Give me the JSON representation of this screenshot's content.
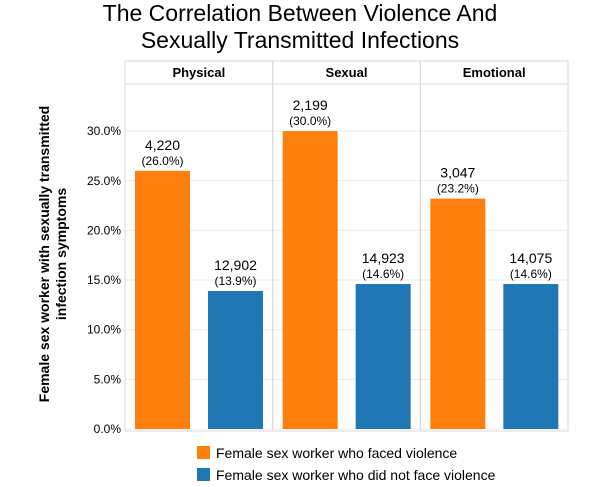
{
  "title_lines": [
    "The Correlation Between Violence And",
    "Sexually Transmitted Infections"
  ],
  "chart_data": {
    "type": "bar",
    "title": "The Correlation Between Violence And Sexually Transmitted Infections",
    "ylabel_lines": [
      "Female sex worker with sexually transmitted",
      "infection symptoms"
    ],
    "ylim": [
      0,
      35
    ],
    "yticks": [
      0,
      5,
      10,
      15,
      20,
      25,
      30
    ],
    "ytick_labels": [
      "0.0%",
      "5.0%",
      "10.0%",
      "15.0%",
      "20.0%",
      "25.0%",
      "30.0%"
    ],
    "facets": [
      "Physical",
      "Sexual",
      "Emotional"
    ],
    "series": [
      {
        "name": "Female sex worker who faced violence",
        "color": "#ff7f0e",
        "values": [
          26.0,
          30.0,
          23.2
        ],
        "counts": [
          "4,220",
          "2,199",
          "3,047"
        ],
        "pct_labels": [
          "(26.0%)",
          "(30.0%)",
          "(23.2%)"
        ]
      },
      {
        "name": "Female sex worker who did not face violence",
        "color": "#1f77b4",
        "values": [
          13.9,
          14.6,
          14.6
        ],
        "counts": [
          "12,902",
          "14,923",
          "14,075"
        ],
        "pct_labels": [
          "(13.9%)",
          "(14.6%)",
          "(14.6%)"
        ]
      }
    ],
    "legend": "bottom"
  }
}
